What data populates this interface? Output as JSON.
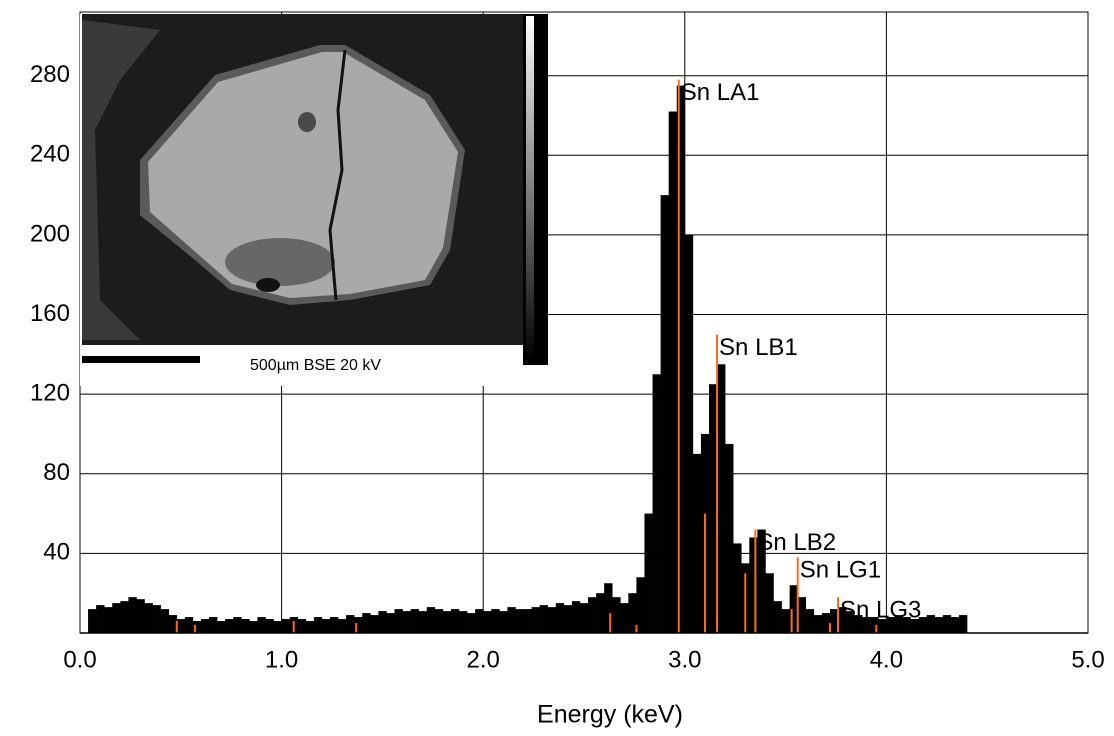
{
  "chart_data": {
    "type": "histogram",
    "x_label": "Energy (keV)",
    "xlim": [
      0,
      5
    ],
    "ylim": [
      0,
      312
    ],
    "xticks": [
      {
        "value": 0,
        "label": "0.0"
      },
      {
        "value": 1,
        "label": "1.0"
      },
      {
        "value": 2,
        "label": "2.0"
      },
      {
        "value": 3,
        "label": "3.0"
      },
      {
        "value": 4,
        "label": "4.0"
      },
      {
        "value": 5,
        "label": "5.0"
      }
    ],
    "yticks": [
      40,
      80,
      120,
      160,
      200,
      240,
      280
    ],
    "grid": true,
    "color": "#000000",
    "marker_color": "#ff6a1a",
    "bins": [
      0.04,
      0.08,
      0.12,
      0.16,
      0.2,
      0.24,
      0.28,
      0.32,
      0.36,
      0.4,
      0.44,
      0.48,
      0.52,
      0.56,
      0.6,
      0.64,
      0.68,
      0.72,
      0.76,
      0.8,
      0.84,
      0.88,
      0.92,
      0.96,
      1.0,
      1.04,
      1.08,
      1.12,
      1.16,
      1.2,
      1.24,
      1.28,
      1.32,
      1.36,
      1.4,
      1.44,
      1.48,
      1.52,
      1.56,
      1.6,
      1.64,
      1.68,
      1.72,
      1.76,
      1.8,
      1.84,
      1.88,
      1.92,
      1.96,
      2.0,
      2.04,
      2.08,
      2.12,
      2.16,
      2.2,
      2.24,
      2.28,
      2.32,
      2.36,
      2.4,
      2.44,
      2.48,
      2.52,
      2.56,
      2.6,
      2.64,
      2.68,
      2.72,
      2.76,
      2.8,
      2.84,
      2.88,
      2.92,
      2.96,
      3.0,
      3.04,
      3.08,
      3.12,
      3.16,
      3.2,
      3.24,
      3.28,
      3.32,
      3.36,
      3.4,
      3.44,
      3.48,
      3.52,
      3.56,
      3.6,
      3.64,
      3.68,
      3.72,
      3.76,
      3.8,
      3.84,
      3.88,
      3.92,
      3.96,
      4.0,
      4.04,
      4.08,
      4.12,
      4.16,
      4.2,
      4.24,
      4.28,
      4.32,
      4.36,
      4.4
    ],
    "values": [
      12,
      14,
      13,
      15,
      16,
      18,
      17,
      15,
      14,
      12,
      9,
      7,
      8,
      6,
      7,
      8,
      6,
      7,
      8,
      7,
      6,
      8,
      7,
      6,
      7,
      8,
      7,
      6,
      8,
      7,
      8,
      7,
      9,
      8,
      10,
      9,
      11,
      10,
      12,
      11,
      12,
      11,
      13,
      12,
      11,
      12,
      11,
      10,
      12,
      11,
      12,
      11,
      13,
      12,
      12,
      13,
      14,
      13,
      15,
      14,
      16,
      15,
      18,
      20,
      25,
      18,
      15,
      20,
      28,
      60,
      130,
      220,
      262,
      275,
      200,
      90,
      100,
      125,
      135,
      95,
      45,
      35,
      48,
      52,
      30,
      16,
      12,
      24,
      18,
      12,
      9,
      10,
      12,
      13,
      11,
      9,
      8,
      8,
      7,
      8,
      9,
      8,
      7,
      8,
      9,
      8,
      9,
      8,
      9
    ],
    "annotations": [
      {
        "text": "Sn LA1",
        "x": 2.97,
        "y": 278
      },
      {
        "text": "Sn LB1",
        "x": 3.16,
        "y": 150
      },
      {
        "text": "Sn LB2",
        "x": 3.35,
        "y": 52
      },
      {
        "text": "Sn LG1",
        "x": 3.56,
        "y": 38
      },
      {
        "text": "Sn LG3",
        "x": 3.76,
        "y": 18
      }
    ],
    "markers": [
      {
        "x": 0.48,
        "y": 6
      },
      {
        "x": 0.57,
        "y": 4
      },
      {
        "x": 1.06,
        "y": 6
      },
      {
        "x": 1.37,
        "y": 5
      },
      {
        "x": 2.63,
        "y": 10
      },
      {
        "x": 2.76,
        "y": 4
      },
      {
        "x": 3.1,
        "y": 60
      },
      {
        "x": 3.3,
        "y": 30
      },
      {
        "x": 3.53,
        "y": 12
      },
      {
        "x": 3.72,
        "y": 5
      },
      {
        "x": 3.95,
        "y": 4
      }
    ],
    "inset_caption": "500µm BSE 20 kV"
  }
}
